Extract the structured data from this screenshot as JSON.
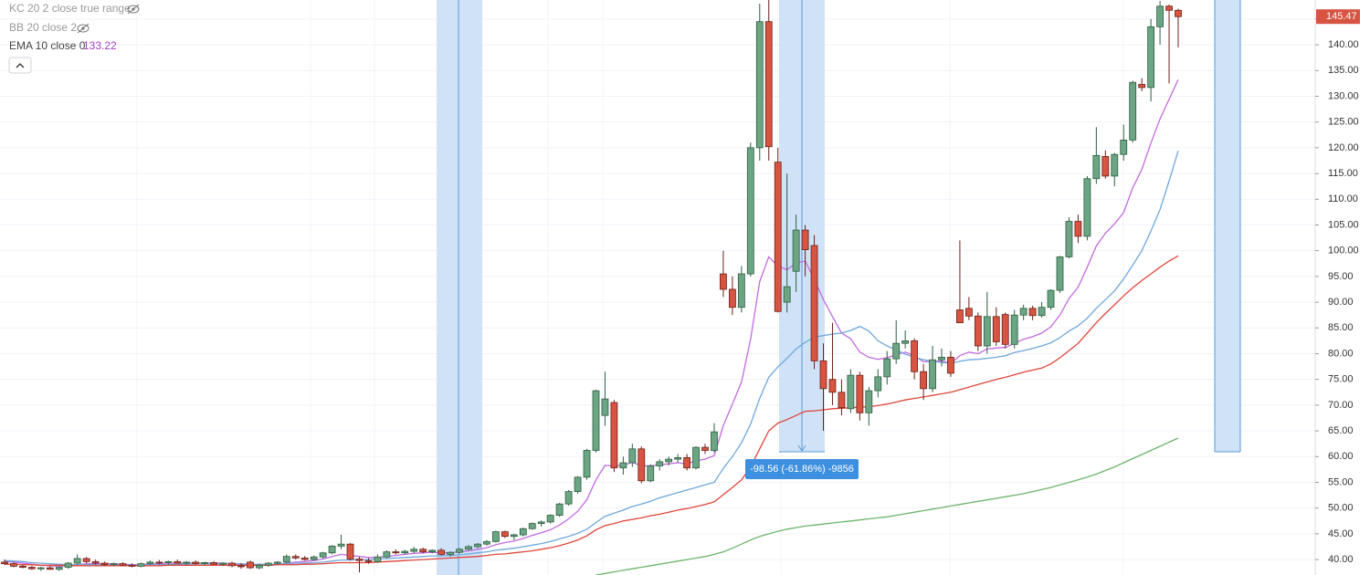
{
  "chart_data": {
    "type": "candlestick",
    "legend": [
      "KC 20 2 close true range",
      "BB 20 close 2",
      "EMA 10 close 0"
    ],
    "annotation": "-98.56 (-61.86%) -9856",
    "up_color": "#6ba583",
    "down_color": "#d75442",
    "ylim": [
      37,
      148.7
    ],
    "yticks": [
      {
        "value": 40,
        "label": "40.00"
      },
      {
        "value": 45,
        "label": "45.00"
      },
      {
        "value": 50,
        "label": "50.00"
      },
      {
        "value": 55,
        "label": "55.00"
      },
      {
        "value": 60,
        "label": "60.00"
      },
      {
        "value": 65,
        "label": "65.00"
      },
      {
        "value": 70,
        "label": "70.00"
      },
      {
        "value": 75,
        "label": "75.00"
      },
      {
        "value": 80,
        "label": "80.00"
      },
      {
        "value": 85,
        "label": "85.00"
      },
      {
        "value": 90,
        "label": "90.00"
      },
      {
        "value": 95,
        "label": "95.00"
      },
      {
        "value": 100,
        "label": "100.00"
      },
      {
        "value": 105,
        "label": "105.00"
      },
      {
        "value": 110,
        "label": "110.00"
      },
      {
        "value": 115,
        "label": "115.00"
      },
      {
        "value": 120,
        "label": "120.00"
      },
      {
        "value": 125,
        "label": "125.00"
      },
      {
        "value": 130,
        "label": "130.00"
      },
      {
        "value": 135,
        "label": "135.00"
      },
      {
        "value": 140,
        "label": "140.00"
      },
      {
        "value": 145,
        "label": "145.00"
      }
    ],
    "grid": true,
    "open": [
      39.5,
      39.2,
      38.7,
      38.5,
      38.2,
      38.4,
      38.1,
      38.5,
      39.3,
      40.2,
      39.6,
      39.3,
      39,
      39.2,
      38.9,
      38.7,
      39.2,
      39.5,
      39.4,
      39.6,
      39.3,
      39.5,
      39.2,
      39.4,
      39.1,
      39.3,
      38.8,
      39.5,
      38.4,
      38.9,
      39.3,
      39.5,
      40.6,
      40.3,
      40,
      40.5,
      41.3,
      42.6,
      43,
      40.1,
      39.8,
      39.6,
      40.5,
      41.5,
      41.3,
      41.6,
      42,
      41.5,
      41.8,
      41,
      41.4,
      42,
      42.5,
      43,
      43.5,
      45.4,
      44.5,
      44.8,
      46,
      47,
      47.3,
      48.6,
      50.8,
      53.2,
      56,
      61.2,
      68,
      70.5,
      57.8,
      58.8,
      61.5,
      55.3,
      58.2,
      59,
      59.5,
      59.8,
      57.8,
      61.8,
      61.2,
      95.5,
      92.5,
      89,
      95.5,
      120,
      144.5,
      117.2,
      90,
      96,
      104,
      101,
      78.6,
      75,
      72.5,
      69.3,
      75.8,
      68.5,
      72.8,
      75.5,
      79,
      82,
      82.5,
      76.5,
      73.2,
      78.8,
      79.3,
      88.5,
      88.8,
      87.3,
      81.5,
      87.2,
      87.6,
      81.8,
      87.5,
      88.8,
      87.4,
      89,
      92.3,
      98.8,
      105.7,
      102.8,
      114,
      118.3,
      114.5,
      118.7,
      121.5,
      132.3,
      131.7,
      143.5,
      147.5,
      146.7
    ],
    "high": [
      40,
      39.5,
      39,
      38.8,
      38.6,
      38.8,
      38.6,
      39.5,
      41,
      40.5,
      40,
      39.6,
      39.4,
      39.5,
      39.3,
      39.4,
      39.8,
      39.9,
      39.8,
      40,
      39.7,
      39.8,
      39.6,
      39.7,
      39.5,
      39.6,
      39.3,
      39.8,
      39.2,
      39.5,
      39.7,
      41,
      41,
      40.7,
      40.8,
      41.5,
      42.8,
      44.8,
      43.2,
      40.5,
      40.3,
      41,
      41.8,
      42,
      41.9,
      42.5,
      42.3,
      42,
      42.2,
      41.6,
      42.2,
      42.8,
      43.2,
      43.8,
      45.6,
      45.6,
      45,
      46.2,
      47.2,
      47.6,
      48.8,
      51,
      53.5,
      56.2,
      61.5,
      73,
      76.5,
      71,
      60,
      62.5,
      62,
      58.5,
      59.5,
      60,
      60.5,
      60.5,
      62,
      62.5,
      66.5,
      100,
      95,
      97,
      121,
      148,
      148.7,
      120,
      115,
      107,
      105,
      103,
      82,
      86,
      75,
      77,
      76.5,
      73.5,
      77,
      80.5,
      86.5,
      84.5,
      83,
      78,
      81.5,
      81,
      80.5,
      102,
      91,
      88,
      92,
      89,
      88,
      88.5,
      89.5,
      89.3,
      90,
      92.5,
      99,
      106.5,
      107,
      114.5,
      124,
      119.5,
      119,
      124.5,
      133,
      133.5,
      145,
      148.5,
      147.8,
      147
    ],
    "low": [
      39,
      38.5,
      38.3,
      38,
      37.8,
      38,
      37.8,
      38.2,
      39,
      39.3,
      39,
      38.8,
      38.7,
      38.8,
      38.5,
      38.5,
      39,
      39.1,
      39,
      39.2,
      39,
      39,
      38.9,
      39,
      38.8,
      38.5,
      38.2,
      38.2,
      38.1,
      38.6,
      39,
      39.3,
      40,
      39.8,
      39.8,
      40.2,
      41,
      42,
      39.8,
      37.5,
      39.2,
      39.4,
      40.2,
      41,
      41,
      41.3,
      41.2,
      41.2,
      40.8,
      40.6,
      41.2,
      41.8,
      42.2,
      42.7,
      43.3,
      44.2,
      43.8,
      44.5,
      45.8,
      46.4,
      47,
      48.3,
      50.5,
      52.8,
      55.5,
      60.8,
      66,
      57,
      56.5,
      58,
      54.8,
      55,
      57.3,
      58.3,
      58.8,
      57.3,
      57.5,
      60.5,
      60.8,
      91,
      87.5,
      88,
      95,
      117.5,
      117.5,
      88,
      88,
      92,
      95,
      77,
      65,
      70,
      68,
      68.5,
      67,
      66,
      71.5,
      74,
      78,
      81,
      75,
      71,
      72.5,
      77.5,
      75.5,
      86,
      86.5,
      80.5,
      80,
      81.5,
      81,
      81,
      86.5,
      86.5,
      87,
      88.5,
      91.8,
      98.5,
      101.5,
      102,
      113,
      114,
      112.5,
      117.5,
      121,
      131,
      129,
      140,
      132.5,
      139.5
    ],
    "close": [
      39.2,
      38.7,
      38.5,
      38.2,
      38.4,
      38.1,
      38.5,
      39.3,
      40.2,
      39.6,
      39.3,
      39,
      39.2,
      38.9,
      38.7,
      39.2,
      39.5,
      39.4,
      39.6,
      39.3,
      39.5,
      39.2,
      39.4,
      39.1,
      39.3,
      38.8,
      38.6,
      38.4,
      38.9,
      39.3,
      39.5,
      40.6,
      40.3,
      40,
      40.5,
      41.3,
      42.6,
      43,
      40.1,
      39.8,
      39.6,
      40.5,
      41.5,
      41.3,
      41.6,
      42,
      41.5,
      41.8,
      41,
      41.4,
      42,
      42.5,
      43,
      43.5,
      45.4,
      44.5,
      44.8,
      46,
      47,
      47.3,
      48.6,
      50.8,
      53.2,
      56,
      61.2,
      72.8,
      71.2,
      57.8,
      58.8,
      61.5,
      55.3,
      58.2,
      59,
      59.5,
      59.8,
      57.8,
      61.8,
      61.2,
      64.8,
      92.5,
      89,
      95.5,
      120,
      144.5,
      120.2,
      88.2,
      93,
      104,
      100.2,
      78.6,
      73.2,
      72.5,
      69.5,
      75.8,
      68.5,
      72.8,
      75.5,
      79,
      82,
      82.5,
      76.5,
      73.2,
      78.8,
      79.3,
      76.2,
      86,
      87.3,
      81.5,
      87.2,
      82.3,
      81.8,
      87.5,
      88.8,
      87.4,
      89,
      92.3,
      98.8,
      105.7,
      102.8,
      114,
      118.5,
      114.5,
      118.7,
      121.5,
      132.7,
      131.7,
      143.5,
      147.5,
      146.7,
      145.47
    ],
    "series": [
      {
        "color": "#c36be0",
        "values": [
          39.6,
          39.5,
          39.3,
          39.1,
          38.9,
          38.8,
          38.7,
          38.8,
          39,
          39.2,
          39.2,
          39.2,
          39.2,
          39.1,
          39,
          39,
          39.1,
          39.2,
          39.3,
          39.3,
          39.3,
          39.3,
          39.3,
          39.3,
          39.3,
          39.2,
          39.1,
          38.9,
          38.9,
          38.9,
          39,
          39.3,
          39.5,
          39.6,
          39.8,
          40.1,
          40.6,
          41,
          40.8,
          40.6,
          40.4,
          40.4,
          40.6,
          40.8,
          41,
          41.2,
          41.3,
          41.4,
          41.3,
          41.3,
          41.5,
          41.7,
          42,
          42.3,
          42.9,
          43.3,
          43.6,
          44.1,
          44.7,
          45.2,
          45.8,
          46.7,
          47.9,
          49.4,
          51.6,
          55.5,
          58.3,
          58.2,
          58.3,
          58.9,
          58.2,
          58.2,
          58.4,
          58.6,
          58.8,
          58.6,
          59.2,
          59.5,
          60.2,
          66,
          70.2,
          74.5,
          82.8,
          94,
          98.8,
          97,
          96.3,
          97.6,
          98,
          94.4,
          90.5,
          87.2,
          84,
          82.9,
          80.3,
          79.3,
          78.9,
          79.2,
          79.8,
          80.3,
          79.6,
          78.4,
          78.5,
          78.6,
          78.1,
          79.6,
          80.3,
          80,
          80.9,
          81.1,
          81.2,
          82,
          82.8,
          83.3,
          84,
          85.2,
          87.5,
          90.7,
          92.9,
          96.8,
          100.9,
          103.4,
          105.2,
          107.4,
          112.2,
          115.8,
          120.9,
          125.6,
          129.4,
          133.22
        ]
      },
      {
        "color": "#6fa8dc",
        "values": [
          39.8,
          39.7,
          39.6,
          39.4,
          39.3,
          39.2,
          39.1,
          39,
          39,
          39,
          39,
          38.9,
          38.9,
          38.9,
          38.9,
          38.9,
          39,
          39,
          39,
          39.1,
          39.1,
          39.2,
          39.2,
          39.2,
          39.2,
          39.2,
          39.2,
          39.1,
          39.1,
          39.1,
          39.1,
          39.2,
          39.3,
          39.3,
          39.4,
          39.5,
          39.7,
          39.9,
          39.9,
          40,
          40,
          40.1,
          40.2,
          40.3,
          40.4,
          40.5,
          40.6,
          40.7,
          40.7,
          40.8,
          40.9,
          41.1,
          41.3,
          41.5,
          41.8,
          42,
          42.2,
          42.5,
          42.8,
          43.1,
          43.5,
          44,
          44.5,
          45.1,
          45.9,
          47.2,
          48.4,
          49,
          49.6,
          50.3,
          50.8,
          51.3,
          52,
          52.5,
          53,
          53.5,
          54,
          54.5,
          55,
          57.7,
          60,
          62.7,
          66.3,
          71.3,
          75.4,
          77.4,
          79.1,
          80.9,
          82.2,
          83.2,
          83.5,
          83.8,
          84,
          84.5,
          85.3,
          84.4,
          82.5,
          81.5,
          80.7,
          79.9,
          79.3,
          78.8,
          78.5,
          78.3,
          78.1,
          78.5,
          78.8,
          78.9,
          79.1,
          79.3,
          79.6,
          80.2,
          80.6,
          81,
          81.5,
          82.1,
          83.1,
          84.4,
          85.4,
          86.9,
          88.8,
          90.5,
          92.2,
          94.5,
          97.2,
          100,
          103.8,
          108,
          113.5,
          119.4
        ]
      },
      {
        "color": "#e0453a",
        "values": [
          39.1,
          39.1,
          39,
          39,
          38.9,
          38.9,
          38.9,
          38.8,
          38.8,
          38.8,
          38.8,
          38.8,
          38.8,
          38.8,
          38.8,
          38.8,
          38.8,
          38.8,
          38.9,
          38.9,
          38.9,
          38.9,
          38.9,
          38.9,
          38.9,
          38.9,
          38.9,
          38.9,
          38.9,
          38.9,
          39,
          39,
          39,
          39.1,
          39.1,
          39.2,
          39.3,
          39.4,
          39.4,
          39.4,
          39.4,
          39.5,
          39.6,
          39.7,
          39.8,
          39.9,
          40,
          40.1,
          40.2,
          40.3,
          40.4,
          40.5,
          40.6,
          40.8,
          41,
          41.1,
          41.3,
          41.5,
          41.7,
          42,
          42.3,
          42.7,
          43.2,
          43.8,
          44.6,
          45.8,
          46.6,
          47,
          47.5,
          47.8,
          48.1,
          48.5,
          48.8,
          49.2,
          49.6,
          49.9,
          50.3,
          50.7,
          51.2,
          52.6,
          54,
          55.5,
          58,
          61.5,
          65,
          66.5,
          67.2,
          68,
          68.8,
          68.9,
          69.1,
          69.3,
          69.4,
          69.5,
          69.6,
          69.7,
          69.9,
          70.2,
          70.6,
          71,
          71.3,
          71.6,
          71.9,
          72.2,
          72.5,
          73,
          73.5,
          74,
          74.5,
          75,
          75.4,
          75.9,
          76.4,
          76.8,
          77.2,
          78,
          79.2,
          80.6,
          82,
          84,
          86,
          87.8,
          89.5,
          91.2,
          92.8,
          94.2,
          95.5,
          96.8,
          98,
          99
        ]
      },
      {
        "color": "#6cb56c",
        "values": [
          null,
          null,
          null,
          null,
          null,
          null,
          null,
          null,
          null,
          null,
          null,
          null,
          null,
          null,
          null,
          null,
          null,
          null,
          null,
          null,
          null,
          null,
          null,
          null,
          null,
          null,
          null,
          null,
          null,
          null,
          null,
          null,
          null,
          null,
          null,
          null,
          null,
          null,
          null,
          null,
          null,
          null,
          null,
          null,
          null,
          null,
          null,
          null,
          null,
          null,
          null,
          null,
          null,
          null,
          null,
          null,
          null,
          null,
          null,
          null,
          null,
          null,
          null,
          null,
          null,
          37,
          37.3,
          37.6,
          37.9,
          38.2,
          38.5,
          38.8,
          39.1,
          39.4,
          39.7,
          40,
          40.3,
          40.6,
          41,
          41.5,
          42.2,
          43,
          43.8,
          44.5,
          45,
          45.5,
          45.9,
          46.2,
          46.5,
          46.7,
          46.9,
          47.1,
          47.3,
          47.5,
          47.7,
          47.9,
          48.1,
          48.3,
          48.6,
          48.9,
          49.2,
          49.5,
          49.8,
          50.1,
          50.4,
          50.7,
          51,
          51.3,
          51.6,
          51.9,
          52.2,
          52.5,
          52.8,
          53.2,
          53.6,
          54,
          54.5,
          55,
          55.5,
          56,
          56.6,
          57.3,
          58,
          58.8,
          59.6,
          60.4,
          61.2,
          62,
          62.8,
          63.6
        ]
      }
    ]
  }
}
